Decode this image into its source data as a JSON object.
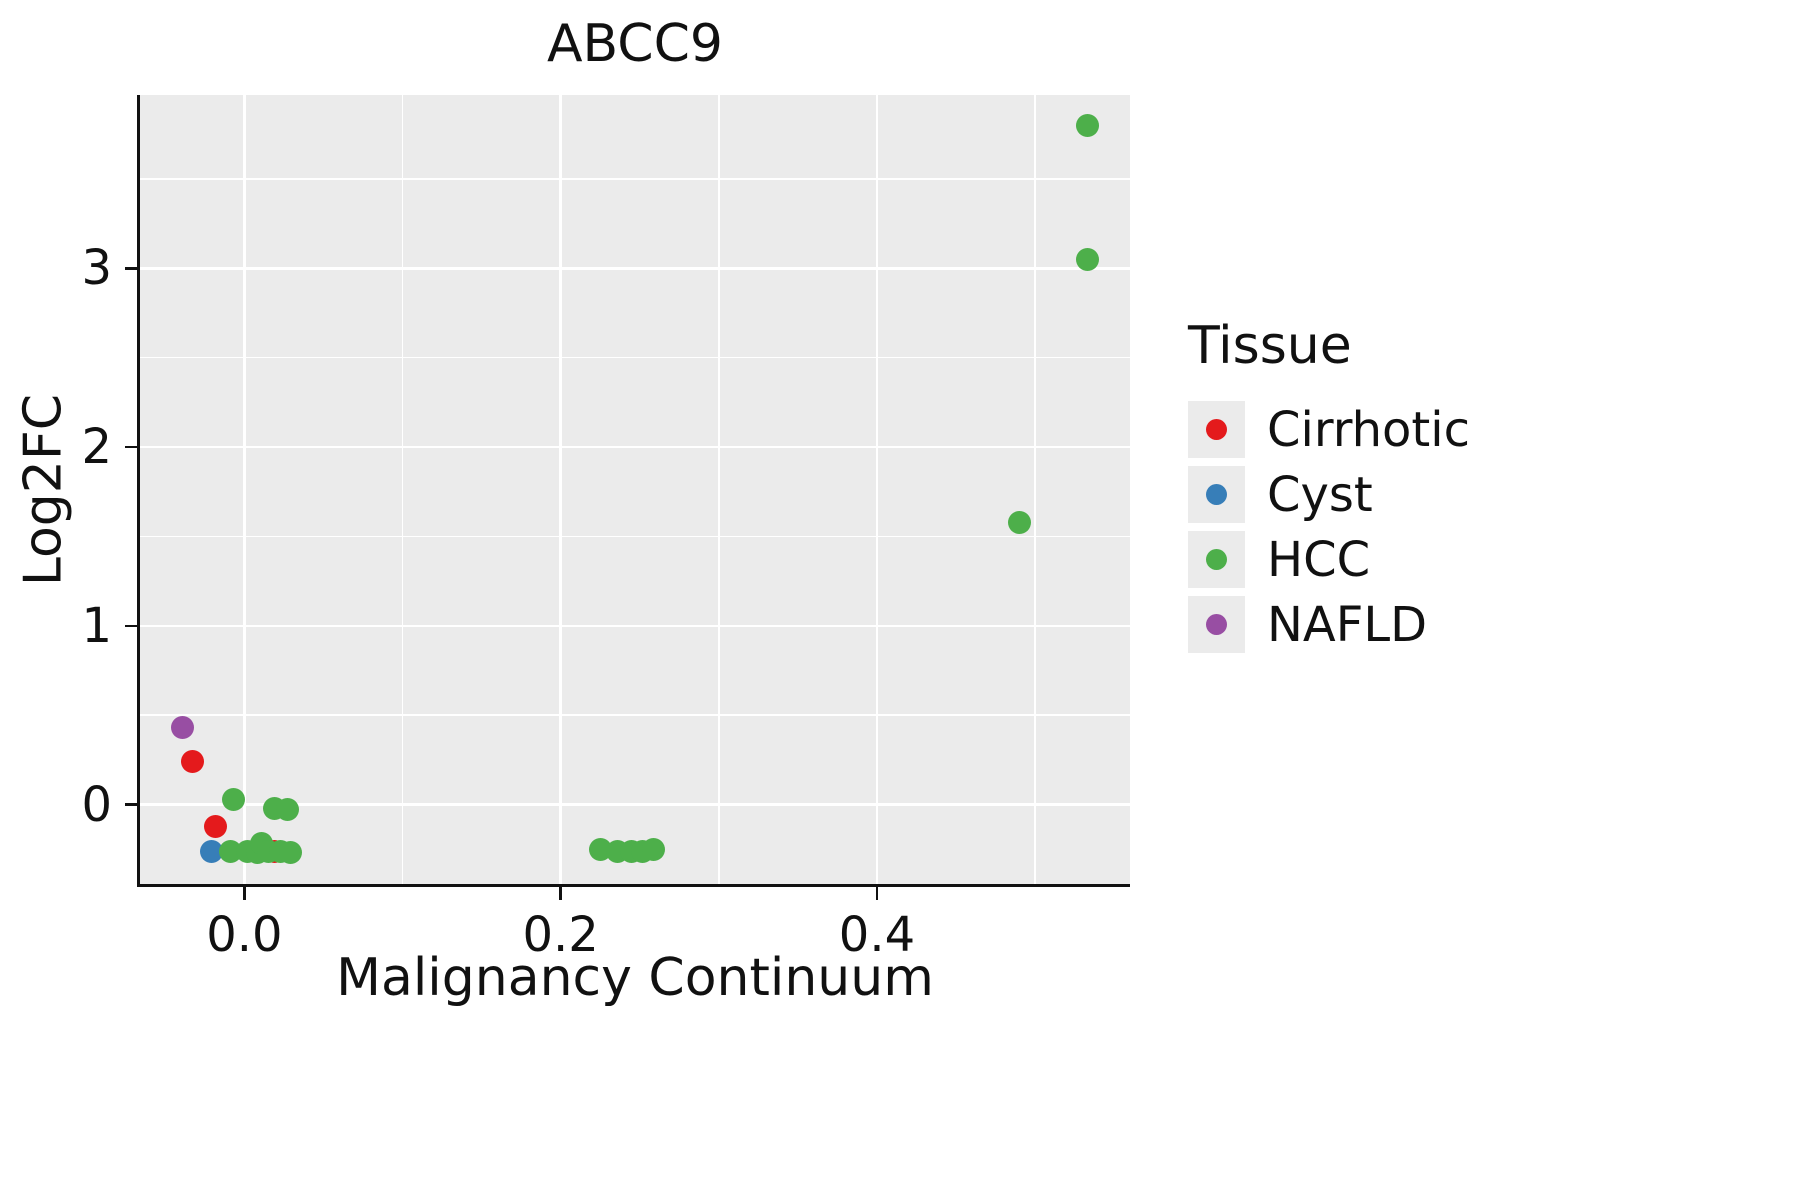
{
  "chart_data": {
    "type": "scatter",
    "title": "ABCC9",
    "xlabel": "Malignancy Continuum",
    "ylabel": "Log2FC",
    "xlim": [
      -0.066,
      0.56
    ],
    "ylim": [
      -0.45,
      3.97
    ],
    "grid": true,
    "panel_background": "#ebebeb",
    "grid_color": "#ffffff",
    "x_major_ticks": [
      {
        "value": 0.0,
        "label": "0.0"
      },
      {
        "value": 0.2,
        "label": "0.2"
      },
      {
        "value": 0.4,
        "label": "0.4"
      }
    ],
    "x_minor_ticks": [
      0.1,
      0.3,
      0.5
    ],
    "y_major_ticks": [
      {
        "value": 0,
        "label": "0"
      },
      {
        "value": 1,
        "label": "1"
      },
      {
        "value": 2,
        "label": "2"
      },
      {
        "value": 3,
        "label": "3"
      }
    ],
    "y_minor_ticks": [
      0.5,
      1.5,
      2.5,
      3.5
    ],
    "legend": {
      "title": "Tissue",
      "position": "right"
    },
    "series": [
      {
        "name": "Cirrhotic",
        "color": "#e41a1c",
        "points": [
          [
            -0.033,
            0.24
          ],
          [
            -0.018,
            -0.12
          ],
          [
            0.019,
            -0.26
          ]
        ]
      },
      {
        "name": "Cyst",
        "color": "#377eb8",
        "points": [
          [
            -0.021,
            -0.26
          ]
        ]
      },
      {
        "name": "HCC",
        "color": "#4daf4a",
        "points": [
          [
            0.533,
            3.8
          ],
          [
            0.533,
            3.05
          ],
          [
            0.49,
            1.58
          ],
          [
            -0.007,
            0.03
          ],
          [
            -0.009,
            -0.26
          ],
          [
            0.002,
            -0.26
          ],
          [
            0.008,
            -0.27
          ],
          [
            0.011,
            -0.22
          ],
          [
            0.015,
            -0.26
          ],
          [
            0.019,
            -0.02
          ],
          [
            0.023,
            -0.26
          ],
          [
            0.027,
            -0.03
          ],
          [
            0.029,
            -0.27
          ],
          [
            0.225,
            -0.25
          ],
          [
            0.236,
            -0.26
          ],
          [
            0.245,
            -0.26
          ],
          [
            0.252,
            -0.26
          ],
          [
            0.259,
            -0.25
          ]
        ]
      },
      {
        "name": "NAFLD",
        "color": "#984ea3",
        "points": [
          [
            -0.039,
            0.43
          ]
        ]
      }
    ]
  }
}
